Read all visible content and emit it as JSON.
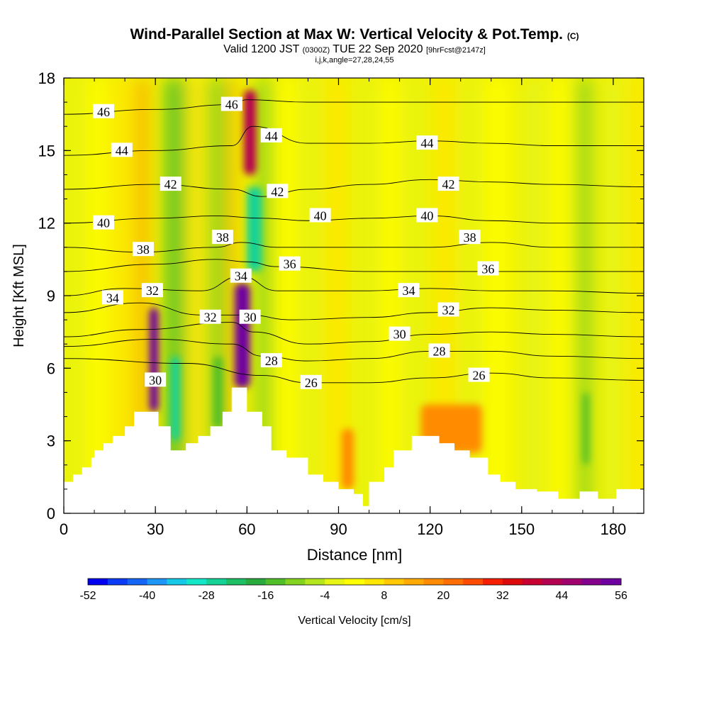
{
  "title": {
    "main": "Wind-Parallel Section at Max W: Vertical Velocity & Pot.Temp.",
    "main_suffix": "(C)",
    "valid_prefix": "Valid 1200 JST",
    "valid_utc": "(0300Z)",
    "valid_date": "TUE 22 Sep 2020",
    "forecast": "[9hrFcst@2147z]",
    "indices": "i,j,k,angle=27,28,24,55"
  },
  "chart_data": {
    "type": "heatmap",
    "xlabel": "Distance [nm]",
    "ylabel": "Height [Kft MSL]",
    "xlim": [
      0,
      190
    ],
    "ylim": [
      0,
      18
    ],
    "xticks": [
      0,
      30,
      60,
      90,
      120,
      150,
      180
    ],
    "yticks": [
      0,
      3,
      6,
      9,
      12,
      15,
      18
    ],
    "colorbar": {
      "label": "Vertical Velocity [cm/s]",
      "tick_labels": [
        "-52",
        "-40",
        "-28",
        "-16",
        "-4",
        "8",
        "20",
        "32",
        "44",
        "56"
      ],
      "colors": [
        "#0000f0",
        "#0a3cf5",
        "#1464f5",
        "#1e96f5",
        "#14c8e6",
        "#14e6c8",
        "#14d296",
        "#1ebe64",
        "#28aa3c",
        "#50be28",
        "#82d21e",
        "#b4e61e",
        "#e6f514",
        "#ffff00",
        "#ffe600",
        "#ffc800",
        "#ffaa00",
        "#ff8c00",
        "#ff6e00",
        "#ff4b00",
        "#f51e00",
        "#dc0a0a",
        "#c80032",
        "#b40050",
        "#a0006e",
        "#82008c",
        "#6e00a0"
      ]
    },
    "field_regions": [
      {
        "x": [
          28,
          31
        ],
        "y": [
          4.2,
          8.5
        ],
        "w": 56
      },
      {
        "x": [
          56,
          61
        ],
        "y": [
          5.2,
          9.5
        ],
        "w": 56
      },
      {
        "x": [
          59,
          63
        ],
        "y": [
          14.0,
          17.5
        ],
        "w": 44
      },
      {
        "x": [
          60,
          65
        ],
        "y": [
          10.0,
          13.5
        ],
        "w": -28
      },
      {
        "x": [
          35,
          38
        ],
        "y": [
          3.0,
          6.5
        ],
        "w": -28
      },
      {
        "x": [
          49,
          52
        ],
        "y": [
          3.5,
          6.5
        ],
        "w": -16
      },
      {
        "x": [
          170,
          172
        ],
        "y": [
          2.0,
          5.0
        ],
        "w": -16
      },
      {
        "x": [
          117,
          137
        ],
        "y": [
          2.5,
          4.5
        ],
        "w": 20
      },
      {
        "x": [
          91,
          95
        ],
        "y": [
          1.0,
          3.5
        ],
        "w": 20
      }
    ],
    "theta_contours": [
      {
        "label": "26",
        "points": [
          [
            0,
            6.4
          ],
          [
            40,
            6.2
          ],
          [
            65,
            5.7
          ],
          [
            80,
            5.4
          ],
          [
            100,
            5.4
          ],
          [
            120,
            5.6
          ],
          [
            140,
            5.8
          ],
          [
            160,
            5.6
          ],
          [
            190,
            5.5
          ]
        ]
      },
      {
        "label": "28",
        "points": [
          [
            0,
            6.9
          ],
          [
            30,
            7.2
          ],
          [
            55,
            7.0
          ],
          [
            65,
            6.5
          ],
          [
            80,
            6.3
          ],
          [
            100,
            6.4
          ],
          [
            120,
            6.7
          ],
          [
            140,
            6.7
          ],
          [
            160,
            6.5
          ],
          [
            190,
            6.4
          ]
        ]
      },
      {
        "label": "30",
        "points": [
          [
            0,
            7.3
          ],
          [
            25,
            7.6
          ],
          [
            55,
            7.9
          ],
          [
            62,
            7.5
          ],
          [
            80,
            7.0
          ],
          [
            100,
            7.1
          ],
          [
            120,
            7.4
          ],
          [
            140,
            7.5
          ],
          [
            160,
            7.4
          ],
          [
            190,
            7.3
          ]
        ]
      },
      {
        "label": "32",
        "points": [
          [
            0,
            8.3
          ],
          [
            25,
            8.7
          ],
          [
            45,
            8.2
          ],
          [
            60,
            8.2
          ],
          [
            75,
            8.0
          ],
          [
            100,
            8.1
          ],
          [
            120,
            8.3
          ],
          [
            140,
            8.5
          ],
          [
            160,
            8.4
          ],
          [
            190,
            8.3
          ]
        ]
      },
      {
        "label": "34",
        "points": [
          [
            0,
            9.0
          ],
          [
            20,
            9.3
          ],
          [
            45,
            9.2
          ],
          [
            58,
            9.8
          ],
          [
            70,
            9.2
          ],
          [
            100,
            9.2
          ],
          [
            120,
            9.3
          ],
          [
            140,
            9.2
          ],
          [
            160,
            9.2
          ],
          [
            190,
            9.1
          ]
        ]
      },
      {
        "label": "36",
        "points": [
          [
            0,
            10.0
          ],
          [
            30,
            10.3
          ],
          [
            50,
            10.5
          ],
          [
            60,
            10.4
          ],
          [
            70,
            10.2
          ],
          [
            100,
            10.0
          ],
          [
            120,
            10.0
          ],
          [
            140,
            10.0
          ],
          [
            160,
            10.0
          ],
          [
            190,
            10.0
          ]
        ]
      },
      {
        "label": "38",
        "points": [
          [
            0,
            11.0
          ],
          [
            25,
            10.8
          ],
          [
            50,
            11.0
          ],
          [
            58,
            11.2
          ],
          [
            70,
            11.0
          ],
          [
            100,
            11.0
          ],
          [
            120,
            11.0
          ],
          [
            140,
            11.2
          ],
          [
            160,
            11.0
          ],
          [
            190,
            11.0
          ]
        ]
      },
      {
        "label": "40",
        "points": [
          [
            0,
            12.0
          ],
          [
            30,
            12.2
          ],
          [
            50,
            12.3
          ],
          [
            65,
            12.2
          ],
          [
            80,
            12.1
          ],
          [
            100,
            12.2
          ],
          [
            120,
            12.3
          ],
          [
            140,
            12.1
          ],
          [
            160,
            12.0
          ],
          [
            190,
            12.0
          ]
        ]
      },
      {
        "label": "42",
        "points": [
          [
            0,
            13.4
          ],
          [
            30,
            13.6
          ],
          [
            55,
            13.4
          ],
          [
            65,
            13.1
          ],
          [
            80,
            13.4
          ],
          [
            100,
            13.6
          ],
          [
            120,
            13.8
          ],
          [
            140,
            13.7
          ],
          [
            160,
            13.6
          ],
          [
            190,
            13.5
          ]
        ]
      },
      {
        "label": "44",
        "points": [
          [
            0,
            14.8
          ],
          [
            30,
            15.0
          ],
          [
            55,
            15.2
          ],
          [
            62,
            16.0
          ],
          [
            80,
            15.3
          ],
          [
            100,
            15.3
          ],
          [
            120,
            15.4
          ],
          [
            140,
            15.3
          ],
          [
            160,
            15.2
          ],
          [
            190,
            15.2
          ]
        ]
      },
      {
        "label": "46",
        "points": [
          [
            0,
            16.5
          ],
          [
            30,
            16.7
          ],
          [
            55,
            16.9
          ],
          [
            60,
            17.1
          ],
          [
            80,
            17.0
          ],
          [
            100,
            17.0
          ],
          [
            120,
            17.0
          ],
          [
            140,
            17.0
          ],
          [
            160,
            17.0
          ],
          [
            190,
            17.0
          ]
        ]
      }
    ],
    "contour_labels": [
      {
        "text": "46",
        "x": 13,
        "y": 16.6
      },
      {
        "text": "46",
        "x": 55,
        "y": 16.9
      },
      {
        "text": "44",
        "x": 19,
        "y": 15.0
      },
      {
        "text": "44",
        "x": 68,
        "y": 15.6
      },
      {
        "text": "44",
        "x": 119,
        "y": 15.3
      },
      {
        "text": "42",
        "x": 35,
        "y": 13.6
      },
      {
        "text": "42",
        "x": 70,
        "y": 13.3
      },
      {
        "text": "42",
        "x": 126,
        "y": 13.6
      },
      {
        "text": "40",
        "x": 13,
        "y": 12.0
      },
      {
        "text": "40",
        "x": 84,
        "y": 12.3
      },
      {
        "text": "40",
        "x": 119,
        "y": 12.3
      },
      {
        "text": "38",
        "x": 26,
        "y": 10.9
      },
      {
        "text": "38",
        "x": 52,
        "y": 11.4
      },
      {
        "text": "38",
        "x": 133,
        "y": 11.4
      },
      {
        "text": "36",
        "x": 74,
        "y": 10.3
      },
      {
        "text": "36",
        "x": 139,
        "y": 10.1
      },
      {
        "text": "34",
        "x": 16,
        "y": 8.9
      },
      {
        "text": "34",
        "x": 58,
        "y": 9.8
      },
      {
        "text": "34",
        "x": 113,
        "y": 9.2
      },
      {
        "text": "32",
        "x": 29,
        "y": 9.2
      },
      {
        "text": "32",
        "x": 48,
        "y": 8.1
      },
      {
        "text": "32",
        "x": 126,
        "y": 8.4
      },
      {
        "text": "30",
        "x": 61,
        "y": 8.1
      },
      {
        "text": "30",
        "x": 30,
        "y": 5.5
      },
      {
        "text": "30",
        "x": 110,
        "y": 7.4
      },
      {
        "text": "28",
        "x": 68,
        "y": 6.3
      },
      {
        "text": "28",
        "x": 123,
        "y": 6.7
      },
      {
        "text": "26",
        "x": 81,
        "y": 5.4
      },
      {
        "text": "26",
        "x": 136,
        "y": 5.7
      }
    ],
    "terrain": [
      [
        0,
        1.3
      ],
      [
        3,
        1.3
      ],
      [
        3,
        1.6
      ],
      [
        6,
        1.6
      ],
      [
        6,
        1.9
      ],
      [
        9,
        1.9
      ],
      [
        9,
        2.3
      ],
      [
        10,
        2.3
      ],
      [
        10,
        2.6
      ],
      [
        13,
        2.6
      ],
      [
        13,
        2.9
      ],
      [
        16,
        2.9
      ],
      [
        16,
        3.2
      ],
      [
        20,
        3.2
      ],
      [
        20,
        3.6
      ],
      [
        23,
        3.6
      ],
      [
        23,
        4.2
      ],
      [
        31,
        4.2
      ],
      [
        31,
        3.6
      ],
      [
        35,
        3.6
      ],
      [
        35,
        2.6
      ],
      [
        40,
        2.6
      ],
      [
        40,
        2.9
      ],
      [
        44,
        2.9
      ],
      [
        44,
        3.2
      ],
      [
        48,
        3.2
      ],
      [
        48,
        3.6
      ],
      [
        52,
        3.6
      ],
      [
        52,
        4.2
      ],
      [
        55,
        4.2
      ],
      [
        55,
        5.2
      ],
      [
        60,
        5.2
      ],
      [
        60,
        4.2
      ],
      [
        65,
        4.2
      ],
      [
        65,
        3.6
      ],
      [
        68,
        3.6
      ],
      [
        68,
        2.6
      ],
      [
        73,
        2.6
      ],
      [
        73,
        2.3
      ],
      [
        80,
        2.3
      ],
      [
        80,
        1.6
      ],
      [
        85,
        1.6
      ],
      [
        85,
        1.3
      ],
      [
        90,
        1.3
      ],
      [
        90,
        1.0
      ],
      [
        95,
        1.0
      ],
      [
        95,
        0.8
      ],
      [
        98,
        0.8
      ],
      [
        98,
        0.3
      ],
      [
        100,
        0.3
      ],
      [
        100,
        1.3
      ],
      [
        105,
        1.3
      ],
      [
        105,
        1.9
      ],
      [
        108,
        1.9
      ],
      [
        108,
        2.6
      ],
      [
        114,
        2.6
      ],
      [
        114,
        3.2
      ],
      [
        123,
        3.2
      ],
      [
        123,
        2.9
      ],
      [
        128,
        2.9
      ],
      [
        128,
        2.6
      ],
      [
        133,
        2.6
      ],
      [
        133,
        2.3
      ],
      [
        139,
        2.3
      ],
      [
        139,
        1.6
      ],
      [
        143,
        1.6
      ],
      [
        143,
        1.3
      ],
      [
        148,
        1.3
      ],
      [
        148,
        1.0
      ],
      [
        155,
        1.0
      ],
      [
        155,
        0.9
      ],
      [
        162,
        0.9
      ],
      [
        162,
        0.6
      ],
      [
        169,
        0.6
      ],
      [
        169,
        0.9
      ],
      [
        175,
        0.9
      ],
      [
        175,
        0.6
      ],
      [
        181,
        0.6
      ],
      [
        181,
        1.0
      ],
      [
        190,
        1.0
      ]
    ]
  }
}
